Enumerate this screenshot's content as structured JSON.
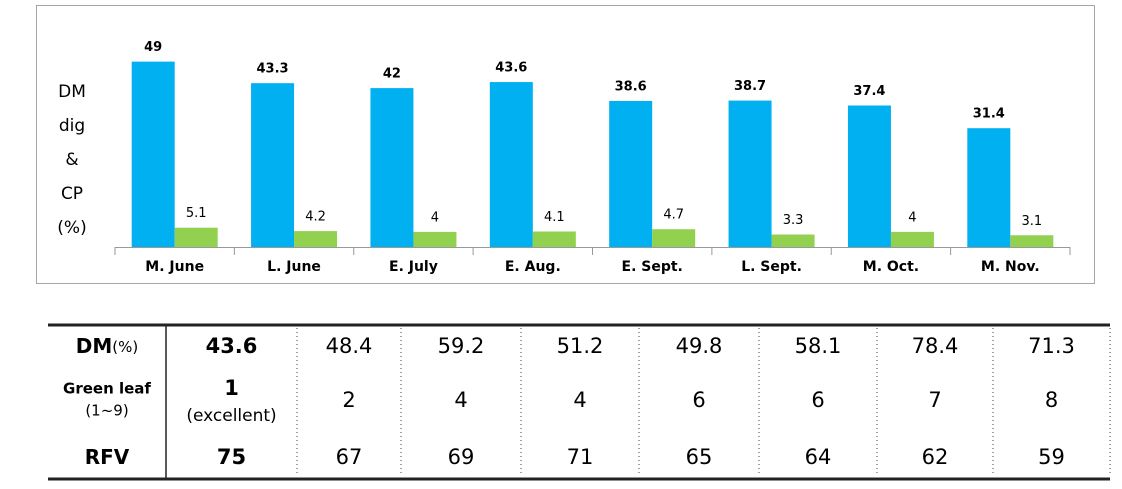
{
  "chart_data": {
    "type": "bar",
    "y_label": [
      "DM",
      "dig",
      "&",
      "CP",
      "(%)"
    ],
    "categories": [
      "M. June",
      "L. June",
      "E. July",
      "E. Aug.",
      "E. Sept.",
      "L. Sept.",
      "M. Oct.",
      "M. Nov."
    ],
    "series": [
      {
        "color": "#00b0f0",
        "values": [
          49,
          43.3,
          42,
          43.6,
          38.6,
          38.7,
          37.4,
          31.4
        ]
      },
      {
        "color": "#92d050",
        "values": [
          5.1,
          4.2,
          4,
          4.1,
          4.7,
          3.3,
          4,
          3.1
        ]
      }
    ],
    "ylim": [
      0,
      60
    ]
  },
  "table": {
    "rows": [
      {
        "label": "DM",
        "unit": "(%)",
        "values": [
          43.6,
          48.4,
          59.2,
          51.2,
          49.8,
          58.1,
          78.4,
          71.3
        ]
      },
      {
        "label": "Green leaf",
        "unit": "(1~9)",
        "values": [
          1,
          2,
          4,
          4,
          6,
          6,
          7,
          8
        ],
        "first_note": "(excellent)"
      },
      {
        "label": "RFV",
        "values": [
          75,
          67,
          69,
          71,
          65,
          64,
          62,
          59
        ]
      }
    ]
  }
}
